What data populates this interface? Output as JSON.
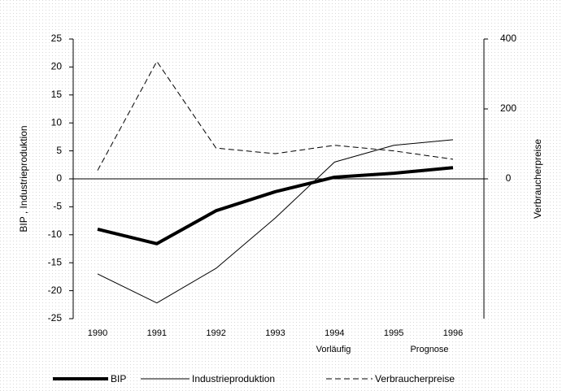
{
  "chart_data": {
    "type": "line",
    "ylabel": "BIP , Industrieproduktion",
    "y2label": "Verbraucherpreise",
    "categories": [
      "1990",
      "1991",
      "1992",
      "1993",
      "1994",
      "1995",
      "1996"
    ],
    "annotations": [
      "Vorläufig",
      "Prognose"
    ],
    "series": [
      {
        "name": "BIP",
        "color": "#000000",
        "style": "thick",
        "values": [
          -9,
          -11.6,
          -5.7,
          -2.3,
          0.3,
          1,
          2
        ]
      },
      {
        "name": "Industrieproduktion",
        "color": "#000000",
        "style": "thin",
        "values": [
          -17,
          -22.2,
          -16,
          -7,
          3,
          6,
          7
        ]
      },
      {
        "name": "Verbraucherpreise",
        "color": "#000000",
        "style": "dashed",
        "axis": "y2",
        "values": [
          24,
          336,
          88,
          72,
          96,
          80,
          56
        ]
      }
    ],
    "ylim": [
      -25,
      25
    ],
    "yticks": [
      -25,
      -20,
      -15,
      -10,
      -5,
      0,
      5,
      10,
      15,
      20,
      25
    ],
    "y2lim": [
      -400,
      400
    ],
    "y2ticks": [
      0,
      200,
      400
    ],
    "legend": "bottom"
  }
}
